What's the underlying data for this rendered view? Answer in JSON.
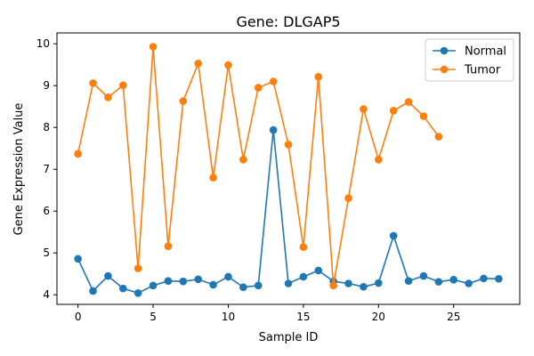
{
  "chart_data": {
    "type": "line",
    "title": "Gene: DLGAP5",
    "xlabel": "Sample ID",
    "ylabel": "Gene Expression Value",
    "xlim": [
      -1.4,
      29.4
    ],
    "ylim": [
      3.77,
      10.26
    ],
    "xticks": [
      0,
      5,
      10,
      15,
      20,
      25
    ],
    "yticks": [
      4,
      5,
      6,
      7,
      8,
      9,
      10
    ],
    "grid": false,
    "legend": "top-right",
    "series": [
      {
        "name": "Normal",
        "color": "#1f77b4",
        "x": [
          0,
          1,
          2,
          3,
          4,
          5,
          6,
          7,
          8,
          9,
          10,
          11,
          12,
          13,
          14,
          15,
          16,
          17,
          18,
          19,
          20,
          21,
          22,
          23,
          24,
          25,
          26,
          27,
          28
        ],
        "values": [
          4.86,
          4.09,
          4.45,
          4.15,
          4.04,
          4.22,
          4.33,
          4.32,
          4.37,
          4.24,
          4.43,
          4.18,
          4.22,
          7.94,
          4.27,
          4.43,
          4.58,
          4.32,
          4.27,
          4.19,
          4.28,
          5.41,
          4.33,
          4.45,
          4.31,
          4.36,
          4.27,
          4.39,
          4.38
        ]
      },
      {
        "name": "Tumor",
        "color": "#ff7f0e",
        "x": [
          0,
          1,
          2,
          3,
          4,
          5,
          6,
          7,
          8,
          9,
          10,
          11,
          12,
          13,
          14,
          15,
          16,
          17,
          18,
          19,
          20,
          21,
          22,
          23,
          24
        ],
        "values": [
          7.37,
          9.06,
          8.72,
          9.01,
          4.63,
          9.93,
          5.16,
          8.63,
          9.53,
          6.8,
          9.49,
          7.23,
          8.95,
          9.1,
          7.59,
          5.14,
          9.21,
          4.22,
          6.31,
          8.44,
          7.23,
          8.4,
          8.61,
          8.27,
          7.78
        ]
      }
    ]
  }
}
